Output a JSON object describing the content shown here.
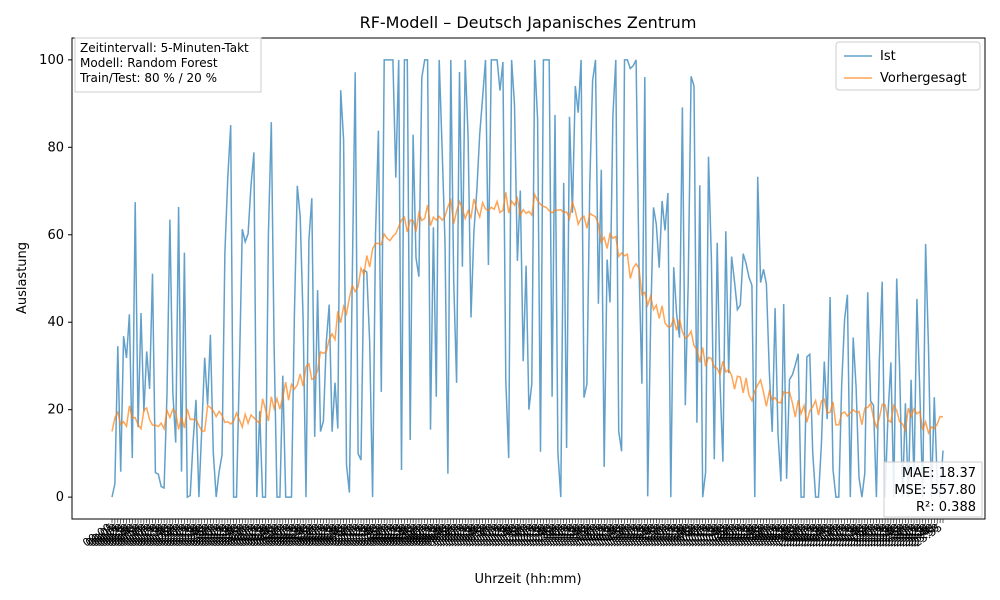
{
  "chart_data": {
    "type": "line",
    "title": "RF-Modell – Deutsch Japanisches Zentrum",
    "xlabel": "Uhrzeit (hh:mm)",
    "ylabel": "Auslastung",
    "ylim": [
      -5,
      105
    ],
    "yticks": [
      0,
      20,
      40,
      60,
      80,
      100
    ],
    "x_tick_note": "~288 dense rotated hh:mm tick labels (illegible, overlapping)",
    "grid": false,
    "legend_position": "top-right",
    "info_box": [
      "Zeitintervall: 5-Minuten-Takt",
      "Modell: Random Forest",
      "Train/Test: 80 % / 20 %"
    ],
    "metrics": [
      "MAE: 18.37",
      "MSE: 557.80",
      "R²: 0.388"
    ],
    "series": [
      {
        "name": "Ist",
        "color": "#1f77b4",
        "note": "highly volatile actual occupancy, 0–100",
        "envelope": [
          {
            "x": 0,
            "center": 18,
            "amp": 22
          },
          {
            "x": 40,
            "center": 20,
            "amp": 30
          },
          {
            "x": 70,
            "center": 22,
            "amp": 32
          },
          {
            "x": 80,
            "center": 40,
            "amp": 35
          },
          {
            "x": 95,
            "center": 60,
            "amp": 40
          },
          {
            "x": 150,
            "center": 62,
            "amp": 42
          },
          {
            "x": 170,
            "center": 55,
            "amp": 38
          },
          {
            "x": 190,
            "center": 40,
            "amp": 32
          },
          {
            "x": 220,
            "center": 25,
            "amp": 25
          },
          {
            "x": 287,
            "center": 15,
            "amp": 20
          }
        ]
      },
      {
        "name": "Vorhergesagt",
        "color": "#ff7f0e",
        "note": "smooth predicted occupancy",
        "profile": [
          {
            "x": 0,
            "y": 18
          },
          {
            "x": 40,
            "y": 18
          },
          {
            "x": 55,
            "y": 20
          },
          {
            "x": 70,
            "y": 30
          },
          {
            "x": 80,
            "y": 42
          },
          {
            "x": 90,
            "y": 55
          },
          {
            "x": 100,
            "y": 63
          },
          {
            "x": 130,
            "y": 67
          },
          {
            "x": 160,
            "y": 66
          },
          {
            "x": 175,
            "y": 56
          },
          {
            "x": 190,
            "y": 42
          },
          {
            "x": 205,
            "y": 32
          },
          {
            "x": 220,
            "y": 25
          },
          {
            "x": 240,
            "y": 20
          },
          {
            "x": 287,
            "y": 17
          }
        ]
      }
    ]
  }
}
